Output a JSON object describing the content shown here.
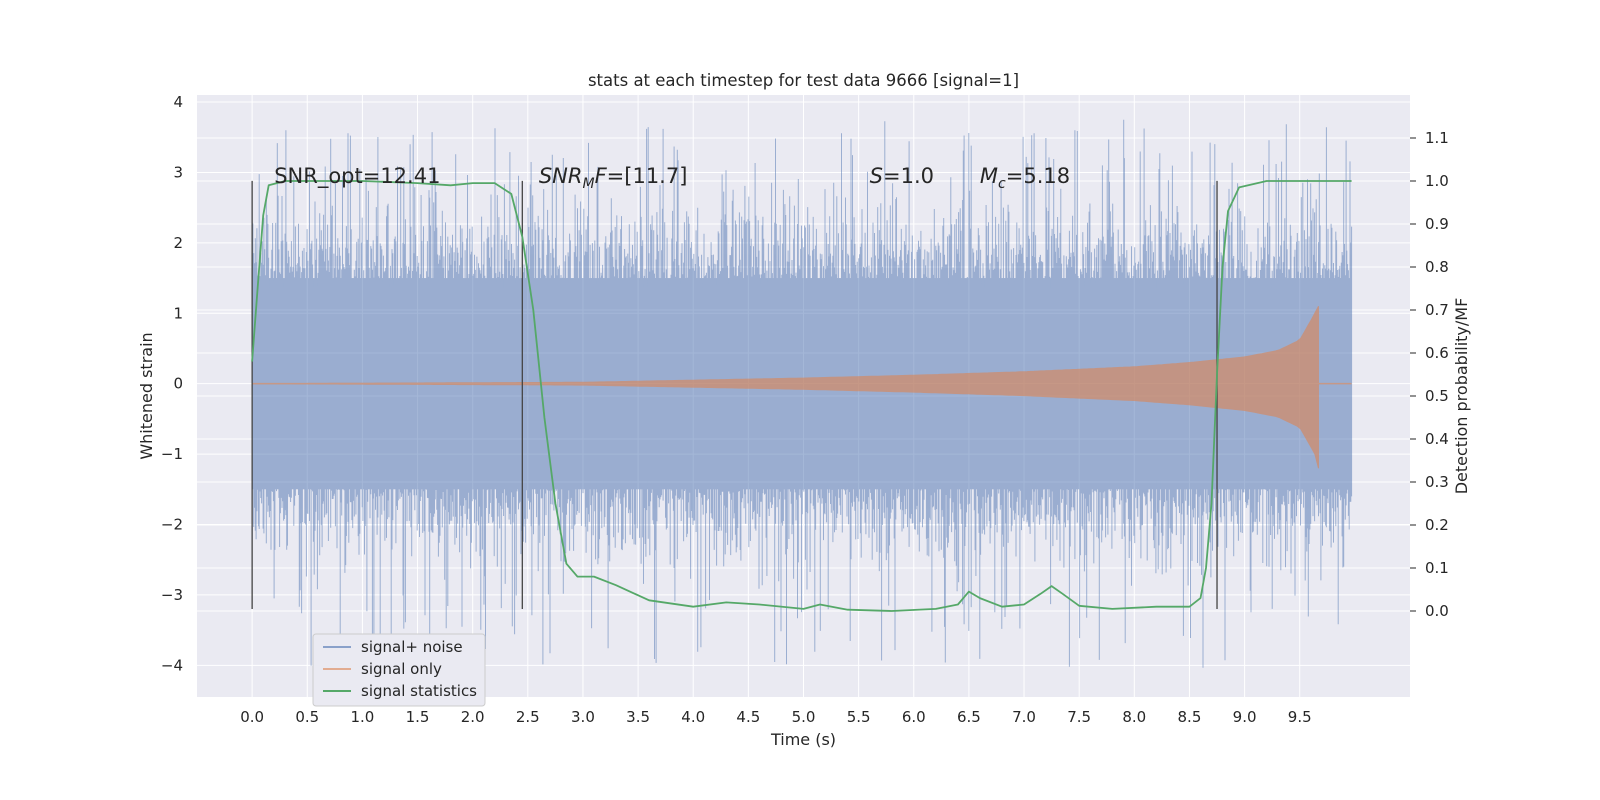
{
  "chart_data": {
    "type": "line",
    "title": "stats at each timestep for test data 9666 [signal=1]",
    "xlabel": "Time (s)",
    "ylabel": "Whitened strain",
    "y2label": "Detection probability/MF",
    "xlim": [
      -0.5,
      10.5
    ],
    "ylim": [
      -4.45,
      4.1
    ],
    "y2lim": [
      -0.2,
      1.2
    ],
    "x_ticks": [
      0.0,
      0.5,
      1.0,
      1.5,
      2.0,
      2.5,
      3.0,
      3.5,
      4.0,
      4.5,
      5.0,
      5.5,
      6.0,
      6.5,
      7.0,
      7.5,
      8.0,
      8.5,
      9.0,
      9.5
    ],
    "x_tick_labels": [
      "0.0",
      "0.5",
      "1.0",
      "1.5",
      "2.0",
      "2.5",
      "3.0",
      "3.5",
      "4.0",
      "4.5",
      "5.0",
      "5.5",
      "6.0",
      "6.5",
      "7.0",
      "7.5",
      "8.0",
      "8.5",
      "9.0",
      "9.5"
    ],
    "y_ticks": [
      4,
      3,
      2,
      1,
      0,
      -1,
      -2,
      -3,
      -4
    ],
    "y_tick_labels": [
      "4",
      "3",
      "2",
      "1",
      "0",
      "−1",
      "−2",
      "−3",
      "−4"
    ],
    "y2_ticks": [
      1.1,
      1.0,
      0.9,
      0.8,
      0.7,
      0.6,
      0.5,
      0.4,
      0.3,
      0.2,
      0.1,
      0.0
    ],
    "y2_tick_labels": [
      "1.1",
      "1.0",
      "0.9",
      "0.8",
      "0.7",
      "0.6",
      "0.5",
      "0.4",
      "0.3",
      "0.2",
      "0.1",
      "0.0"
    ],
    "grid": true,
    "legend_position": "lower-left",
    "annotations": [
      {
        "x": 0.2,
        "y": 2.85,
        "parts": [
          {
            "t": "SNR_opt=12.41",
            "i": false
          }
        ]
      },
      {
        "x": 2.6,
        "y": 2.85,
        "parts": [
          {
            "t": "SNR",
            "i": true
          },
          {
            "t": "M",
            "i": true,
            "sub": true
          },
          {
            "t": "F",
            "i": true
          },
          {
            "t": "=[11.7]",
            "i": false
          }
        ]
      },
      {
        "x": 5.6,
        "y": 2.85,
        "parts": [
          {
            "t": "S",
            "i": true
          },
          {
            "t": "=1.0",
            "i": false
          }
        ]
      },
      {
        "x": 6.6,
        "y": 2.85,
        "parts": [
          {
            "t": "M",
            "i": true
          },
          {
            "t": "c",
            "i": true,
            "sub": true
          },
          {
            "t": "=5.18",
            "i": false
          }
        ]
      }
    ],
    "vertical_lines": [
      0.0,
      2.45,
      8.75
    ],
    "series": [
      {
        "name": "signal+ noise",
        "color": "#4c72b0",
        "axis": "left",
        "x_range": [
          0.0,
          9.97
        ],
        "envelope_core": 1.5,
        "envelope_spike_max": 3.75,
        "envelope_spike_min": -4.05
      },
      {
        "name": "signal only",
        "color": "#dd8452",
        "axis": "left",
        "x_start": 0.0,
        "x_end": 9.97,
        "merger_x": 9.67,
        "amplitude_points": [
          [
            0.0,
            0.0
          ],
          [
            3.0,
            0.02
          ],
          [
            4.0,
            0.05
          ],
          [
            5.0,
            0.08
          ],
          [
            6.0,
            0.12
          ],
          [
            7.0,
            0.17
          ],
          [
            8.0,
            0.24
          ],
          [
            8.5,
            0.3
          ],
          [
            9.0,
            0.38
          ],
          [
            9.3,
            0.47
          ],
          [
            9.5,
            0.62
          ],
          [
            9.62,
            0.95
          ],
          [
            9.67,
            1.1
          ]
        ],
        "min_at_merger": -1.2
      },
      {
        "name": "signal statistics",
        "color": "#55a868",
        "axis": "right",
        "points": [
          [
            0.0,
            0.58
          ],
          [
            0.05,
            0.75
          ],
          [
            0.1,
            0.92
          ],
          [
            0.15,
            0.99
          ],
          [
            0.3,
            1.0
          ],
          [
            1.0,
            1.0
          ],
          [
            1.5,
            0.995
          ],
          [
            1.8,
            0.99
          ],
          [
            2.0,
            0.995
          ],
          [
            2.2,
            0.995
          ],
          [
            2.35,
            0.97
          ],
          [
            2.45,
            0.87
          ],
          [
            2.55,
            0.7
          ],
          [
            2.65,
            0.45
          ],
          [
            2.75,
            0.25
          ],
          [
            2.85,
            0.11
          ],
          [
            2.95,
            0.08
          ],
          [
            3.1,
            0.08
          ],
          [
            3.3,
            0.06
          ],
          [
            3.6,
            0.025
          ],
          [
            4.0,
            0.01
          ],
          [
            4.3,
            0.02
          ],
          [
            4.6,
            0.015
          ],
          [
            5.0,
            0.005
          ],
          [
            5.15,
            0.015
          ],
          [
            5.4,
            0.003
          ],
          [
            5.8,
            0.0
          ],
          [
            6.2,
            0.005
          ],
          [
            6.4,
            0.015
          ],
          [
            6.5,
            0.045
          ],
          [
            6.6,
            0.03
          ],
          [
            6.8,
            0.01
          ],
          [
            7.0,
            0.015
          ],
          [
            7.15,
            0.04
          ],
          [
            7.25,
            0.058
          ],
          [
            7.35,
            0.04
          ],
          [
            7.5,
            0.012
          ],
          [
            7.8,
            0.005
          ],
          [
            8.2,
            0.01
          ],
          [
            8.5,
            0.01
          ],
          [
            8.6,
            0.03
          ],
          [
            8.65,
            0.1
          ],
          [
            8.7,
            0.25
          ],
          [
            8.75,
            0.55
          ],
          [
            8.8,
            0.8
          ],
          [
            8.85,
            0.93
          ],
          [
            8.95,
            0.985
          ],
          [
            9.2,
            1.0
          ],
          [
            9.5,
            1.0
          ],
          [
            9.97,
            1.0
          ]
        ]
      }
    ]
  },
  "legend": {
    "items": [
      {
        "label": "signal+ noise",
        "color": "#4c72b0"
      },
      {
        "label": "signal only",
        "color": "#dd8452"
      },
      {
        "label": "signal statistics",
        "color": "#55a868"
      }
    ]
  }
}
